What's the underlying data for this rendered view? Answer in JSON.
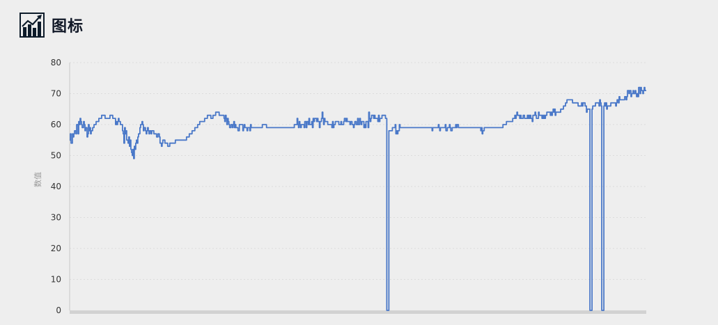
{
  "header": {
    "title": "图标",
    "icon": "chart-trend-icon"
  },
  "chart_data": {
    "type": "line",
    "title": "",
    "xlabel": "",
    "ylabel": "数值",
    "ylim": [
      0,
      80
    ],
    "yticks": [
      0,
      10,
      20,
      30,
      40,
      50,
      60,
      70,
      80
    ],
    "grid": true,
    "legend": "none",
    "color": "#4a78c8",
    "x_count": 830,
    "series": [
      {
        "points": [
          [
            0,
            55
          ],
          [
            3,
            54
          ],
          [
            5,
            56
          ],
          [
            8,
            58
          ],
          [
            10,
            60
          ],
          [
            12,
            59
          ],
          [
            14,
            62
          ],
          [
            16,
            61
          ],
          [
            18,
            59
          ],
          [
            20,
            61
          ],
          [
            22,
            58
          ],
          [
            24,
            59
          ],
          [
            26,
            57
          ],
          [
            28,
            58
          ],
          [
            30,
            57
          ],
          [
            33,
            59
          ],
          [
            36,
            60
          ],
          [
            40,
            61
          ],
          [
            44,
            62
          ],
          [
            48,
            63
          ],
          [
            52,
            62
          ],
          [
            56,
            62
          ],
          [
            60,
            63
          ],
          [
            64,
            62
          ],
          [
            66,
            61
          ],
          [
            70,
            61
          ],
          [
            74,
            60
          ],
          [
            76,
            58
          ],
          [
            78,
            56
          ],
          [
            80,
            57
          ],
          [
            82,
            55
          ],
          [
            84,
            54
          ],
          [
            86,
            53
          ],
          [
            88,
            52
          ],
          [
            90,
            50
          ],
          [
            92,
            51
          ],
          [
            94,
            52
          ],
          [
            96,
            55
          ],
          [
            98,
            56
          ],
          [
            100,
            57
          ],
          [
            102,
            60
          ],
          [
            104,
            61
          ],
          [
            106,
            58
          ],
          [
            108,
            59
          ],
          [
            110,
            57
          ],
          [
            112,
            58
          ],
          [
            114,
            57
          ],
          [
            118,
            58
          ],
          [
            122,
            57
          ],
          [
            126,
            56
          ],
          [
            128,
            57
          ],
          [
            130,
            54
          ],
          [
            132,
            53
          ],
          [
            134,
            55
          ],
          [
            138,
            54
          ],
          [
            142,
            53
          ],
          [
            146,
            54
          ],
          [
            150,
            54
          ],
          [
            154,
            55
          ],
          [
            158,
            55
          ],
          [
            162,
            55
          ],
          [
            166,
            55
          ],
          [
            170,
            56
          ],
          [
            174,
            57
          ],
          [
            178,
            58
          ],
          [
            182,
            59
          ],
          [
            186,
            60
          ],
          [
            188,
            61
          ],
          [
            192,
            61
          ],
          [
            196,
            62
          ],
          [
            200,
            63
          ],
          [
            204,
            62
          ],
          [
            208,
            63
          ],
          [
            212,
            64
          ],
          [
            216,
            63
          ],
          [
            220,
            63
          ],
          [
            222,
            62
          ],
          [
            226,
            61
          ],
          [
            230,
            60
          ],
          [
            234,
            60
          ],
          [
            238,
            59
          ],
          [
            242,
            59
          ],
          [
            246,
            60
          ],
          [
            250,
            59
          ],
          [
            256,
            59
          ],
          [
            262,
            59
          ],
          [
            268,
            59
          ],
          [
            274,
            59
          ],
          [
            280,
            60
          ],
          [
            284,
            59
          ],
          [
            290,
            59
          ],
          [
            296,
            59
          ],
          [
            302,
            59
          ],
          [
            308,
            59
          ],
          [
            314,
            59
          ],
          [
            320,
            59
          ],
          [
            326,
            60
          ],
          [
            330,
            59
          ],
          [
            336,
            60
          ],
          [
            340,
            61
          ],
          [
            344,
            60
          ],
          [
            348,
            61
          ],
          [
            352,
            62
          ],
          [
            356,
            61
          ],
          [
            360,
            61
          ],
          [
            364,
            62
          ],
          [
            368,
            61
          ],
          [
            372,
            60
          ],
          [
            376,
            60
          ],
          [
            380,
            60
          ],
          [
            384,
            61
          ],
          [
            388,
            60
          ],
          [
            392,
            60
          ],
          [
            396,
            61
          ],
          [
            400,
            61
          ],
          [
            404,
            60
          ],
          [
            408,
            60
          ],
          [
            412,
            61
          ],
          [
            416,
            60
          ],
          [
            420,
            61
          ],
          [
            424,
            60
          ],
          [
            428,
            61
          ],
          [
            432,
            62
          ],
          [
            436,
            63
          ],
          [
            440,
            62
          ],
          [
            444,
            61
          ],
          [
            448,
            62
          ],
          [
            452,
            63
          ],
          [
            454,
            62
          ],
          [
            456,
            0
          ],
          [
            458,
            0
          ],
          [
            459,
            58
          ],
          [
            462,
            58
          ],
          [
            466,
            59
          ],
          [
            470,
            58
          ],
          [
            476,
            59
          ],
          [
            482,
            59
          ],
          [
            488,
            59
          ],
          [
            494,
            59
          ],
          [
            500,
            59
          ],
          [
            506,
            59
          ],
          [
            512,
            59
          ],
          [
            518,
            59
          ],
          [
            524,
            59
          ],
          [
            530,
            59
          ],
          [
            536,
            59
          ],
          [
            542,
            59
          ],
          [
            548,
            59
          ],
          [
            554,
            59
          ],
          [
            560,
            59
          ],
          [
            566,
            59
          ],
          [
            572,
            59
          ],
          [
            578,
            59
          ],
          [
            584,
            59
          ],
          [
            590,
            59
          ],
          [
            594,
            58
          ],
          [
            598,
            59
          ],
          [
            602,
            59
          ],
          [
            608,
            59
          ],
          [
            614,
            59
          ],
          [
            620,
            59
          ],
          [
            626,
            60
          ],
          [
            630,
            61
          ],
          [
            636,
            61
          ],
          [
            640,
            62
          ],
          [
            644,
            63
          ],
          [
            648,
            62
          ],
          [
            652,
            63
          ],
          [
            656,
            62
          ],
          [
            660,
            63
          ],
          [
            664,
            62
          ],
          [
            668,
            63
          ],
          [
            672,
            62
          ],
          [
            676,
            63
          ],
          [
            680,
            62
          ],
          [
            684,
            63
          ],
          [
            688,
            64
          ],
          [
            692,
            63
          ],
          [
            696,
            64
          ],
          [
            700,
            64
          ],
          [
            704,
            64
          ],
          [
            708,
            65
          ],
          [
            712,
            66
          ],
          [
            716,
            68
          ],
          [
            720,
            68
          ],
          [
            724,
            67
          ],
          [
            728,
            67
          ],
          [
            732,
            66
          ],
          [
            736,
            66
          ],
          [
            740,
            66
          ],
          [
            744,
            65
          ],
          [
            747,
            65
          ],
          [
            748,
            0
          ],
          [
            750,
            0
          ],
          [
            751,
            65
          ],
          [
            754,
            66
          ],
          [
            758,
            67
          ],
          [
            762,
            67
          ],
          [
            764,
            66
          ],
          [
            765,
            0
          ],
          [
            767,
            0
          ],
          [
            768,
            66
          ],
          [
            772,
            66
          ],
          [
            776,
            66
          ],
          [
            780,
            67
          ],
          [
            784,
            67
          ],
          [
            788,
            67
          ],
          [
            792,
            68
          ],
          [
            796,
            68
          ],
          [
            800,
            69
          ],
          [
            802,
            70
          ],
          [
            804,
            71
          ],
          [
            808,
            70
          ],
          [
            812,
            70
          ],
          [
            816,
            70
          ],
          [
            820,
            71
          ],
          [
            824,
            71
          ],
          [
            828,
            71
          ]
        ],
        "jitter": [
          [
            [
              0,
              30
            ],
            2
          ],
          [
            [
              60,
              120
            ],
            2
          ],
          [
            [
              220,
              260
            ],
            1
          ],
          [
            [
              320,
              455
            ],
            2
          ],
          [
            [
              460,
              475
            ],
            1
          ],
          [
            [
              520,
              560
            ],
            1
          ],
          [
            [
              590,
              596
            ],
            1
          ],
          [
            [
              636,
              700
            ],
            1
          ],
          [
            [
              736,
              746
            ],
            1
          ],
          [
            [
              752,
              790
            ],
            1
          ],
          [
            [
              800,
              830
            ],
            1
          ]
        ]
      }
    ]
  }
}
